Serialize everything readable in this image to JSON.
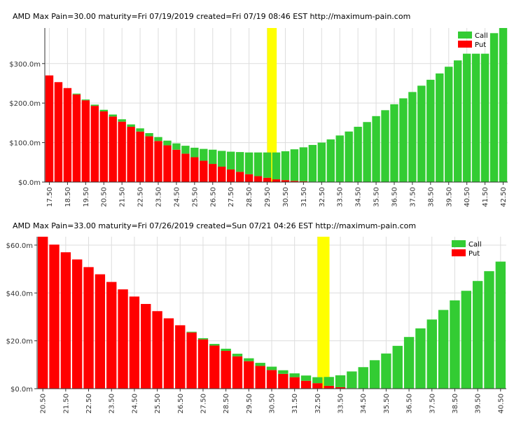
{
  "colors": {
    "call": "#33cc33",
    "put": "#ff0000",
    "max_pain": "#ffff00",
    "grid": "#dddddd",
    "axis": "#333333"
  },
  "chart_data": [
    {
      "type": "bar",
      "stacked": true,
      "title": "AMD  Max Pain=30.00 maturity=Fri 07/19/2019  created=Fri 07/19 08:46 EST    http://maximum-pain.com",
      "max_pain_strike": 30.0,
      "ylim": [
        0,
        390
      ],
      "y_ticks": [
        0,
        100,
        200,
        300
      ],
      "y_tick_labels": [
        "$0.0m",
        "$100.0m",
        "$200.0m",
        "$300.0m"
      ],
      "x_tick_labels": [
        "17.50",
        "18.50",
        "19.50",
        "20.50",
        "21.50",
        "22.50",
        "23.50",
        "24.50",
        "25.50",
        "26.50",
        "27.50",
        "28.50",
        "29.50",
        "30.50",
        "31.50",
        "32.50",
        "33.50",
        "34.50",
        "35.50",
        "36.50",
        "37.50",
        "38.50",
        "39.50",
        "40.50",
        "41.50",
        "42.50"
      ],
      "legend": [
        "Call",
        "Put"
      ],
      "legend_position": "top-right",
      "categories": [
        17.5,
        18,
        18.5,
        19,
        19.5,
        20,
        20.5,
        21,
        21.5,
        22,
        22.5,
        23,
        23.5,
        24,
        24.5,
        25,
        25.5,
        26,
        26.5,
        27,
        27.5,
        28,
        28.5,
        29,
        29.5,
        30,
        30.5,
        31,
        31.5,
        32,
        32.5,
        33,
        33.5,
        34,
        34.5,
        35,
        35.5,
        36,
        36.5,
        37,
        37.5,
        38,
        38.5,
        39,
        39.5,
        40,
        40.5,
        41,
        41.5,
        42,
        42.5
      ],
      "series": [
        {
          "name": "Put",
          "values": [
            270,
            253,
            238,
            222,
            207,
            193,
            179,
            166,
            153,
            140,
            128,
            116,
            104,
            93,
            82,
            72,
            63,
            54,
            46,
            39,
            32,
            26,
            20,
            15,
            11,
            7,
            5,
            3,
            2,
            1,
            0,
            0,
            0,
            0,
            0,
            0,
            0,
            0,
            0,
            0,
            0,
            0,
            0,
            0,
            0,
            0,
            0,
            0,
            0,
            0,
            0
          ]
        },
        {
          "name": "Call",
          "values": [
            0,
            0,
            0,
            2,
            2,
            3,
            4,
            5,
            6,
            6,
            8,
            8,
            10,
            12,
            16,
            20,
            24,
            30,
            36,
            40,
            45,
            50,
            55,
            60,
            64,
            68,
            73,
            80,
            86,
            93,
            100,
            108,
            118,
            128,
            140,
            152,
            167,
            182,
            197,
            212,
            228,
            244,
            259,
            275,
            292,
            308,
            325,
            325,
            325,
            377,
            390
          ]
        }
      ]
    },
    {
      "type": "bar",
      "stacked": true,
      "title": "AMD  Max Pain=33.00 maturity=Fri 07/26/2019  created=Sun 07/21 04:26 EST    http://maximum-pain.com",
      "max_pain_strike": 33.0,
      "ylim": [
        0,
        63.5
      ],
      "y_ticks": [
        0,
        20,
        40,
        60
      ],
      "y_tick_labels": [
        "$0.0m",
        "$20.0m",
        "$40.0m",
        "$60.0m"
      ],
      "x_tick_labels": [
        "20.50",
        "21.50",
        "22.50",
        "23.50",
        "24.50",
        "25.50",
        "26.50",
        "27.50",
        "28.50",
        "29.50",
        "30.50",
        "31.50",
        "32.50",
        "33.50",
        "34.50",
        "35.50",
        "36.50",
        "37.50",
        "38.50",
        "39.50",
        "40.50"
      ],
      "legend": [
        "Call",
        "Put"
      ],
      "legend_position": "top-right",
      "categories": [
        20.5,
        21,
        21.5,
        22,
        22.5,
        23,
        23.5,
        24,
        24.5,
        25,
        25.5,
        26,
        26.5,
        27,
        27.5,
        28,
        28.5,
        29,
        29.5,
        30,
        30.5,
        31,
        31.5,
        32,
        32.5,
        33,
        33.5,
        34,
        34.5,
        35,
        35.5,
        36,
        36.5,
        37,
        37.5,
        38,
        38.5,
        39,
        39.5,
        40,
        40.5
      ],
      "series": [
        {
          "name": "Put",
          "values": [
            63.5,
            60.2,
            57.0,
            54.0,
            50.8,
            47.8,
            44.6,
            41.5,
            38.5,
            35.4,
            32.4,
            29.4,
            26.5,
            23.5,
            20.6,
            18.0,
            15.8,
            13.5,
            11.5,
            9.5,
            7.8,
            6.2,
            4.8,
            3.3,
            2.3,
            1.2,
            0.6,
            0.2,
            0,
            0,
            0,
            0,
            0,
            0,
            0,
            0,
            0,
            0,
            0,
            0,
            0
          ]
        },
        {
          "name": "Call",
          "values": [
            0,
            0,
            0,
            0,
            0,
            0,
            0,
            0,
            0,
            0,
            0,
            0,
            0,
            0.3,
            0.5,
            0.7,
            0.9,
            1.1,
            1.2,
            1.3,
            1.4,
            1.5,
            1.6,
            2.2,
            2.5,
            3.7,
            5.0,
            7.0,
            9.0,
            11.9,
            14.7,
            17.9,
            21.6,
            25.2,
            28.9,
            32.9,
            36.9,
            40.9,
            45.0,
            49.1,
            53.1
          ]
        }
      ]
    }
  ]
}
